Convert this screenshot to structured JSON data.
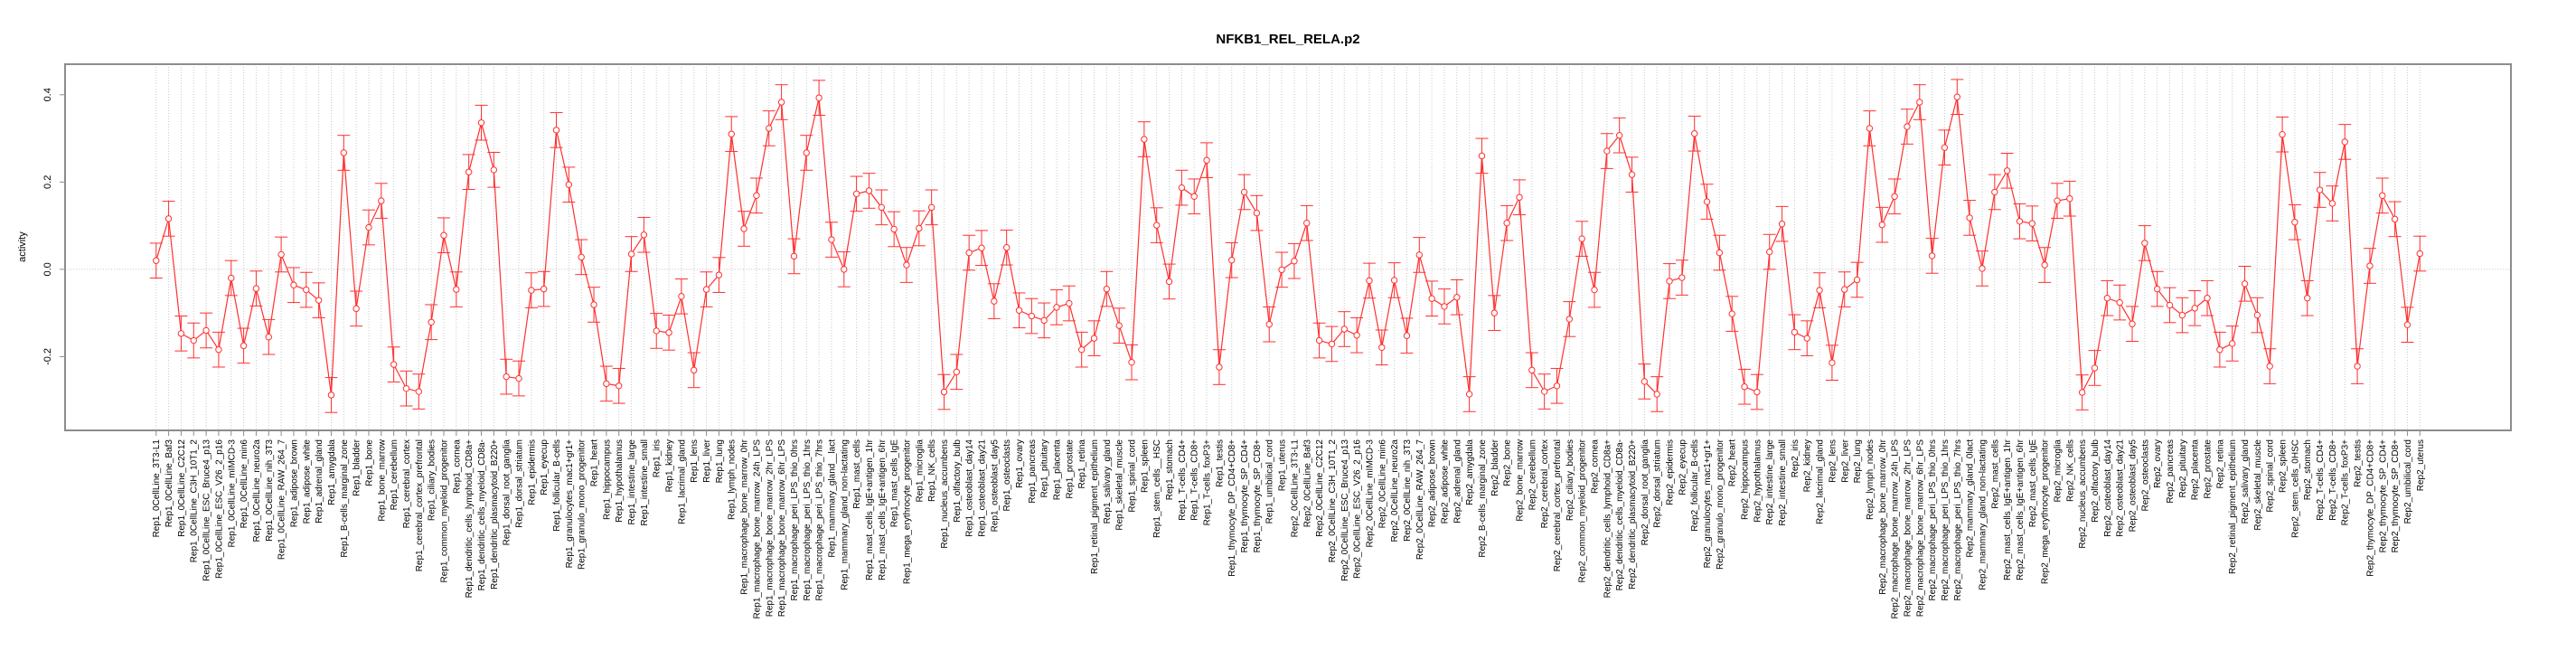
{
  "chart_data": {
    "type": "line",
    "title": "NFKB1_REL_RELA.p2",
    "xlabel": "",
    "ylabel": "activity",
    "ylim": [
      -0.369,
      0.47
    ],
    "yticks": [
      -0.2,
      0.0,
      0.2,
      0.4
    ],
    "ytick_labels": [
      "-0.2",
      "0.0",
      "0.2",
      "0.4"
    ],
    "grid": "dotted vertical at each category, dotted horizontal at 0",
    "legend": "none",
    "error_bar_halfwidth": 0.04,
    "colors": {
      "series": "#ff3030",
      "axis": "#8c8c8c",
      "grid": "#c8c8c8"
    },
    "categories": [
      "Rep1_0CellLine_3T3-L1",
      "Rep1_0CellLine_Baf3",
      "Rep1_0CellLine_C2C12",
      "Rep1_0CellLine_C3H_10T1_2",
      "Rep1_0CellLine_ESC_Bruce4_p13",
      "Rep1_0CellLine_ESC_V26_2_p16",
      "Rep1_0CellLine_mIMCD-3",
      "Rep1_0CellLine_min6",
      "Rep1_0CellLine_neuro2a",
      "Rep1_0CellLine_nih_3T3",
      "Rep1_0CellLine_RAW_264_7",
      "Rep1_adipose_brown",
      "Rep1_adipose_white",
      "Rep1_adrenal_gland",
      "Rep1_amygdala",
      "Rep1_B-cells_marginal_zone",
      "Rep1_bladder",
      "Rep1_bone",
      "Rep1_bone_marrow",
      "Rep1_cerebellum",
      "Rep1_cerebral_cortex",
      "Rep1_cerebral_cortex_prefrontal",
      "Rep1_ciliary_bodies",
      "Rep1_common_myeloid_progenitor",
      "Rep1_cornea",
      "Rep1_dendritic_cells_lymphoid_CD8a+",
      "Rep1_dendritic_cells_myeloid_CD8a-",
      "Rep1_dendritic_plasmacytoid_B220+",
      "Rep1_dorsal_root_ganglia",
      "Rep1_dorsal_striatum",
      "Rep1_epidermis",
      "Rep1_eyecup",
      "Rep1_follicular_B-cells",
      "Rep1_granulocytes_mac1+gr1+",
      "Rep1_granulo_mono_progenitor",
      "Rep1_heart",
      "Rep1_hippocampus",
      "Rep1_hypothalamus",
      "Rep1_intestine_large",
      "Rep1_intestine_small",
      "Rep1_iris",
      "Rep1_kidney",
      "Rep1_lacrimal_gland",
      "Rep1_lens",
      "Rep1_liver",
      "Rep1_lung",
      "Rep1_lymph_nodes",
      "Rep1_macrophage_bone_marrow_0hr",
      "Rep1_macrophage_bone_marrow_24h_LPS",
      "Rep1_macrophage_bone_marrow_2hr_LPS",
      "Rep1_macrophage_bone_marrow_6hr_LPS",
      "Rep1_macrophage_peri_LPS_thio_0hrs",
      "Rep1_macrophage_peri_LPS_thio_1hrs",
      "Rep1_macrophage_peri_LPS_thio_7hrs",
      "Rep1_mammary_gland__lact",
      "Rep1_mammary_gland_non-lactating",
      "Rep1_mast_cells",
      "Rep1_mast_cells_IgE+antigen_1hr",
      "Rep1_mast_cells_IgE+antigen_6hr",
      "Rep1_mast_cells_IgE",
      "Rep1_mega_erythrocyte_progenitor",
      "Rep1_microglia",
      "Rep1_NK_cells",
      "Rep1_nucleus_accumbens",
      "Rep1_olfactory_bulb",
      "Rep1_osteoblast_day14",
      "Rep1_osteoblast_day21",
      "Rep1_osteoblast_day5",
      "Rep1_osteoclasts",
      "Rep1_ovary",
      "Rep1_pancreas",
      "Rep1_pituitary",
      "Rep1_placenta",
      "Rep1_prostate",
      "Rep1_retina",
      "Rep1_retinal_pigment_epithelium",
      "Rep1_salivary_gland",
      "Rep1_skeletal_muscle",
      "Rep1_spinal_cord",
      "Rep1_spleen",
      "Rep1_stem_cells__HSC",
      "Rep1_stomach",
      "Rep1_T-cells_CD4+",
      "Rep1_T-cells_CD8+",
      "Rep1_T-cells_foxP3+",
      "Rep1_testis",
      "Rep1_thymocyte_DP_CD4+CD8+",
      "Rep1_thymocyte_SP_CD4+",
      "Rep1_thymocyte_SP_CD8+",
      "Rep1_umbilical_cord",
      "Rep1_uterus",
      "Rep2_0CellLine_3T3-L1",
      "Rep2_0CellLine_Baf3",
      "Rep2_0CellLine_C2C12",
      "Rep2_0CellLine_C3H_10T1_2",
      "Rep2_0CellLine_ESC_Bruce4_p13",
      "Rep2_0CellLine_ESC_V26_2_p16",
      "Rep2_0CellLine_mIMCD-3",
      "Rep2_0CellLine_min6",
      "Rep2_0CellLine_neuro2a",
      "Rep2_0CellLine_nih_3T3",
      "Rep2_0CellLine_RAW_264_7",
      "Rep2_adipose_brown",
      "Rep2_adipose_white",
      "Rep2_adrenal_gland",
      "Rep2_amygdala",
      "Rep2_B-cells_marginal_zone",
      "Rep2_bladder",
      "Rep2_bone",
      "Rep2_bone_marrow",
      "Rep2_cerebellum",
      "Rep2_cerebral_cortex",
      "Rep2_cerebral_cortex_prefrontal",
      "Rep2_ciliary_bodies",
      "Rep2_common_myeloid_progenitor",
      "Rep2_cornea",
      "Rep2_dendritic_cells_lymphoid_CD8a+",
      "Rep2_dendritic_cells_myeloid_CD8a-",
      "Rep2_dendritic_plasmacytoid_B220+",
      "Rep2_dorsal_root_ganglia",
      "Rep2_dorsal_striatum",
      "Rep2_epidermis",
      "Rep2_eyecup",
      "Rep2_follicular_B-cells",
      "Rep2_granulocytes_mac1+gr1+",
      "Rep2_granulo_mono_progenitor",
      "Rep2_heart",
      "Rep2_hippocampus",
      "Rep2_hypothalamus",
      "Rep2_intestine_large",
      "Rep2_intestine_small",
      "Rep2_iris",
      "Rep2_kidney",
      "Rep2_lacrimal_gland",
      "Rep2_lens",
      "Rep2_liver",
      "Rep2_lung",
      "Rep2_lymph_nodes",
      "Rep2_macrophage_bone_marrow_0hr",
      "Rep2_macrophage_bone_marrow_24h_LPS",
      "Rep2_macrophage_bone_marrow_2hr_LPS",
      "Rep2_macrophage_bone_marrow_6hr_LPS",
      "Rep2_macrophage_peri_LPS_thio_0hrs",
      "Rep2_macrophage_peri_LPS_thio_1hrs",
      "Rep2_macrophage_peri_LPS_thio_7hrs",
      "Rep2_mammary_gland_0lact",
      "Rep2_mammary_gland_non-lactating",
      "Rep2_mast_cells",
      "Rep2_mast_cells_IgE+antigen_1hr",
      "Rep2_mast_cells_IgE+antigen_6hr",
      "Rep2_mast_cells_IgE",
      "Rep2_mega_erythrocyte_progenitor",
      "Rep2_microglia",
      "Rep2_NK_cells",
      "Rep2_nucleus_accumbens",
      "Rep2_olfactory_bulb",
      "Rep2_osteoblast_day14",
      "Rep2_osteoblast_day21",
      "Rep2_osteoblast_day5",
      "Rep2_osteoclasts",
      "Rep2_ovary",
      "Rep2_pancreas",
      "Rep2_pituitary",
      "Rep2_placenta",
      "Rep2_prostate",
      "Rep2_retina",
      "Rep2_retinal_pigment_epithelium",
      "Rep2_salivary_gland",
      "Rep2_skeletal_muscle",
      "Rep2_spinal_cord",
      "Rep2_spleen",
      "Rep2_stem_cells_0HSC",
      "Rep2_stomach",
      "Rep2_T-cells_CD4+",
      "Rep2_T-cells_CD8+",
      "Rep2_T-cells_foxP3+",
      "Rep2_testis",
      "Rep2_thymocyte_DP_CD4+CD8+",
      "Rep2_thymocyte_SP_CD4+",
      "Rep2_thymocyte_SP_CD8+",
      "Rep2_umbilical_cord",
      "Rep2_uterus"
    ],
    "series": [
      {
        "name": "activity",
        "values": [
          0.02,
          0.116,
          -0.147,
          -0.163,
          -0.14,
          -0.184,
          -0.02,
          -0.175,
          -0.044,
          -0.155,
          0.034,
          -0.036,
          -0.047,
          -0.071,
          -0.288,
          0.267,
          -0.09,
          0.096,
          0.157,
          -0.218,
          -0.273,
          -0.28,
          -0.121,
          0.078,
          -0.046,
          0.223,
          0.336,
          0.228,
          -0.246,
          -0.25,
          -0.048,
          -0.045,
          0.319,
          0.194,
          0.028,
          -0.081,
          -0.262,
          -0.267,
          0.035,
          0.079,
          -0.141,
          -0.145,
          -0.062,
          -0.231,
          -0.046,
          -0.013,
          0.31,
          0.093,
          0.169,
          0.323,
          0.383,
          0.03,
          0.267,
          0.393,
          0.068,
          0.0,
          0.173,
          0.18,
          0.142,
          0.092,
          0.01,
          0.094,
          0.142,
          -0.281,
          -0.235,
          0.038,
          0.049,
          -0.073,
          0.05,
          -0.094,
          -0.107,
          -0.117,
          -0.087,
          -0.078,
          -0.184,
          -0.158,
          -0.045,
          -0.129,
          -0.213,
          0.298,
          0.101,
          -0.028,
          0.187,
          0.167,
          0.25,
          -0.224,
          0.021,
          0.177,
          0.129,
          -0.126,
          -0.001,
          0.019,
          0.106,
          -0.163,
          -0.171,
          -0.137,
          -0.151,
          -0.026,
          -0.179,
          -0.025,
          -0.152,
          0.033,
          -0.067,
          -0.085,
          -0.064,
          -0.286,
          0.26,
          -0.1,
          0.106,
          0.165,
          -0.231,
          -0.28,
          -0.267,
          -0.114,
          0.07,
          -0.047,
          0.271,
          0.307,
          0.217,
          -0.257,
          -0.286,
          -0.027,
          -0.019,
          0.311,
          0.155,
          0.038,
          -0.102,
          -0.269,
          -0.281,
          0.04,
          0.104,
          -0.144,
          -0.158,
          -0.048,
          -0.214,
          -0.046,
          -0.024,
          0.323,
          0.102,
          0.167,
          0.327,
          0.383,
          0.031,
          0.279,
          0.395,
          0.118,
          0.002,
          0.177,
          0.226,
          0.11,
          0.105,
          0.01,
          0.157,
          0.162,
          -0.282,
          -0.226,
          -0.066,
          -0.076,
          -0.125,
          0.06,
          -0.045,
          -0.082,
          -0.105,
          -0.089,
          -0.066,
          -0.184,
          -0.17,
          -0.033,
          -0.105,
          -0.222,
          0.309,
          0.108,
          -0.066,
          0.182,
          0.151,
          0.292,
          -0.222,
          0.008,
          0.169,
          0.115,
          -0.127,
          0.036
        ]
      }
    ]
  }
}
